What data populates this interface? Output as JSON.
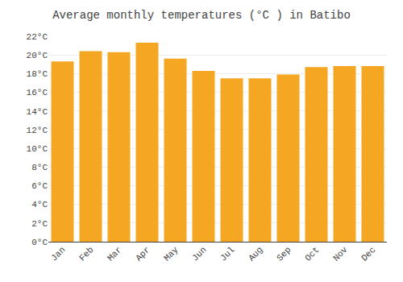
{
  "chart_data": {
    "type": "bar",
    "title": "Average monthly temperatures (°C ) in Batibo",
    "categories": [
      "Jan",
      "Feb",
      "Mar",
      "Apr",
      "May",
      "Jun",
      "Jul",
      "Aug",
      "Sep",
      "Oct",
      "Nov",
      "Dec"
    ],
    "values": [
      19.3,
      20.4,
      20.3,
      21.3,
      19.6,
      18.3,
      17.5,
      17.5,
      17.9,
      18.7,
      18.8,
      18.8
    ],
    "color": "#F5A623",
    "ylim": [
      0,
      22
    ],
    "yticks": [
      {
        "value": 0,
        "label": "0°C"
      },
      {
        "value": 2,
        "label": "2°C"
      },
      {
        "value": 4,
        "label": "4°C"
      },
      {
        "value": 6,
        "label": "6°C"
      },
      {
        "value": 8,
        "label": "8°C"
      },
      {
        "value": 10,
        "label": "10°C"
      },
      {
        "value": 12,
        "label": "12°C"
      },
      {
        "value": 14,
        "label": "14°C"
      },
      {
        "value": 16,
        "label": "16°C"
      },
      {
        "value": 18,
        "label": "18°C"
      },
      {
        "value": 20,
        "label": "20°C"
      },
      {
        "value": 22,
        "label": "22°C"
      }
    ],
    "grid": true
  }
}
